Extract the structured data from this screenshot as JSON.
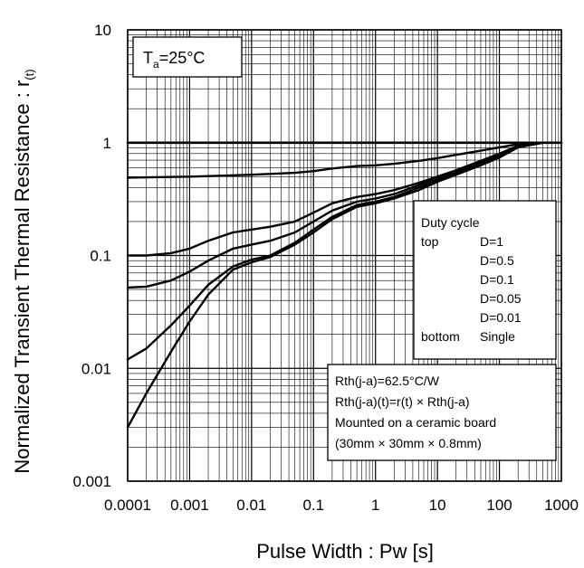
{
  "chart_data": {
    "type": "line",
    "ylabel_main": "Normalized Transient Thermal Resistance : r",
    "ylabel_sub": "(t)",
    "xlabel": "Pulse Width : Pw [s]",
    "x_scale": "log",
    "y_scale": "log",
    "xlim": [
      0.0001,
      1000
    ],
    "ylim": [
      0.001,
      10
    ],
    "grid": true,
    "x_tick_labels": [
      "0.0001",
      "0.001",
      "0.01",
      "0.1",
      "1",
      "10",
      "100",
      "1000"
    ],
    "y_tick_labels": [
      "10",
      "1",
      "0.1",
      "0.01",
      "0.001"
    ],
    "condition": {
      "prefix": "T",
      "sub": "a",
      "suffix": "=25°C"
    },
    "legend": {
      "title": "Duty cycle",
      "rows": [
        {
          "pos": "top",
          "value": "D=1"
        },
        {
          "pos": "",
          "value": "D=0.5"
        },
        {
          "pos": "",
          "value": "D=0.1"
        },
        {
          "pos": "",
          "value": "D=0.05"
        },
        {
          "pos": "",
          "value": "D=0.01"
        },
        {
          "pos": "bottom",
          "value": "Single"
        }
      ]
    },
    "notes": [
      "Rth(j-a)=62.5°C/W",
      "Rth(j-a)(t)=r(t) × Rth(j-a)",
      "Mounted on a ceramic board",
      "(30mm × 30mm × 0.8mm)"
    ],
    "series": [
      {
        "x": [
          0.0001,
          1000
        ],
        "y": [
          1,
          1
        ]
      },
      {
        "x": [
          0.0001,
          0.001,
          0.01,
          0.05,
          0.1,
          0.2,
          0.5,
          1,
          2,
          5,
          10,
          20,
          50,
          100,
          200,
          500,
          1000
        ],
        "y": [
          0.49,
          0.5,
          0.52,
          0.54,
          0.56,
          0.59,
          0.62,
          0.63,
          0.65,
          0.69,
          0.73,
          0.78,
          0.85,
          0.91,
          0.97,
          1,
          1
        ]
      },
      {
        "x": [
          0.0001,
          0.0002,
          0.0005,
          0.001,
          0.002,
          0.005,
          0.01,
          0.02,
          0.05,
          0.1,
          0.2,
          0.5,
          1,
          2,
          5,
          10,
          20,
          50,
          100,
          200,
          500,
          1000
        ],
        "y": [
          0.1,
          0.1,
          0.105,
          0.115,
          0.135,
          0.16,
          0.17,
          0.18,
          0.2,
          0.24,
          0.29,
          0.33,
          0.35,
          0.38,
          0.44,
          0.5,
          0.57,
          0.69,
          0.8,
          0.94,
          1,
          1
        ]
      },
      {
        "x": [
          0.0001,
          0.0002,
          0.0005,
          0.001,
          0.002,
          0.005,
          0.01,
          0.02,
          0.05,
          0.1,
          0.2,
          0.5,
          1,
          2,
          5,
          10,
          20,
          50,
          100,
          200,
          500,
          1000
        ],
        "y": [
          0.052,
          0.053,
          0.06,
          0.072,
          0.09,
          0.115,
          0.125,
          0.135,
          0.16,
          0.2,
          0.25,
          0.3,
          0.32,
          0.35,
          0.42,
          0.48,
          0.55,
          0.67,
          0.78,
          0.93,
          1,
          1
        ]
      },
      {
        "x": [
          0.0001,
          0.0002,
          0.0005,
          0.001,
          0.002,
          0.005,
          0.01,
          0.02,
          0.05,
          0.1,
          0.2,
          0.5,
          1,
          2,
          5,
          10,
          20,
          50,
          100,
          200,
          500,
          1000
        ],
        "y": [
          0.012,
          0.015,
          0.024,
          0.036,
          0.055,
          0.08,
          0.092,
          0.1,
          0.13,
          0.17,
          0.22,
          0.28,
          0.3,
          0.33,
          0.4,
          0.46,
          0.53,
          0.65,
          0.76,
          0.92,
          1,
          1
        ]
      },
      {
        "x": [
          0.0001,
          0.0002,
          0.0005,
          0.001,
          0.002,
          0.005,
          0.01,
          0.02,
          0.05,
          0.1,
          0.2,
          0.5,
          1,
          2,
          5,
          10,
          20,
          50,
          100,
          200,
          500,
          1000
        ],
        "y": [
          0.003,
          0.006,
          0.014,
          0.026,
          0.045,
          0.075,
          0.087,
          0.097,
          0.125,
          0.16,
          0.21,
          0.27,
          0.29,
          0.32,
          0.38,
          0.45,
          0.52,
          0.63,
          0.74,
          0.91,
          1,
          1
        ]
      }
    ]
  }
}
